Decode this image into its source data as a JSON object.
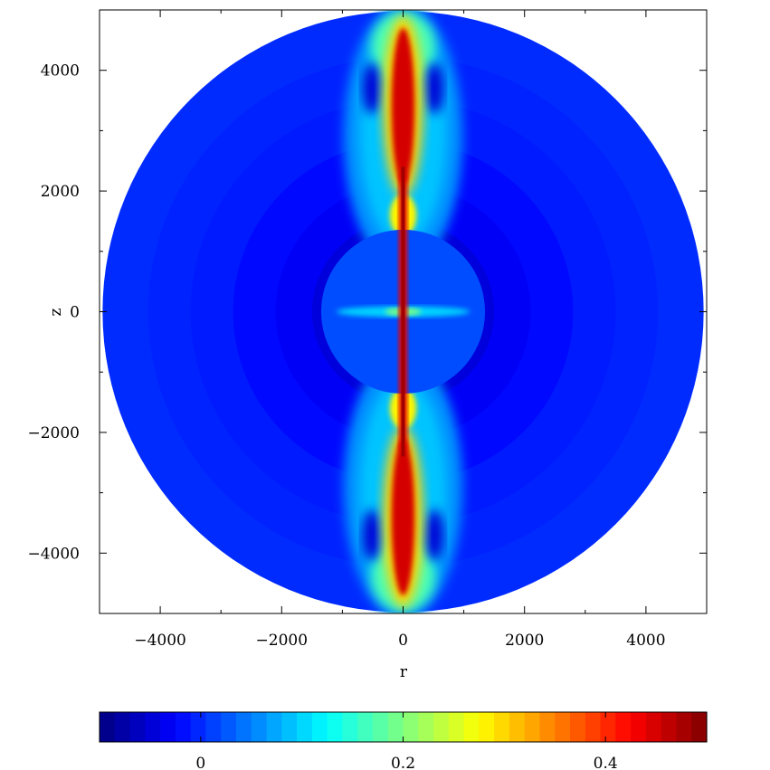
{
  "chart_data": {
    "type": "heatmap",
    "title": "",
    "xlabel": "r",
    "ylabel": "z",
    "xlim": [
      -5000,
      5000
    ],
    "ylim": [
      -5000,
      5000
    ],
    "x_ticks": [
      -4000,
      -2000,
      0,
      2000,
      4000
    ],
    "y_ticks": [
      4000,
      2000,
      0,
      -2000,
      -4000
    ],
    "x_tick_labels": [
      "−4000",
      "−2000",
      "0",
      "2000",
      "4000"
    ],
    "y_tick_labels": [
      "4000",
      "2000",
      "0",
      "−2000",
      "−4000"
    ],
    "domain_radius": 4950,
    "colorbar": {
      "min": -0.1,
      "max": 0.5,
      "ticks": [
        0,
        0.2,
        0.4
      ],
      "tick_labels": [
        "0",
        "0.2",
        "0.4"
      ],
      "colormap": "jet",
      "levels": 40
    },
    "features": [
      {
        "name": "polar jet",
        "z_extent": [
          -4950,
          4950
        ],
        "peak_value": 0.48
      },
      {
        "name": "central shocked sphere",
        "radius": 1350,
        "value": 0.02
      },
      {
        "name": "equatorial outflow",
        "r_extent": [
          -1100,
          1100
        ],
        "value": 0.1
      },
      {
        "name": "background ambient medium",
        "value": -0.02
      }
    ]
  }
}
